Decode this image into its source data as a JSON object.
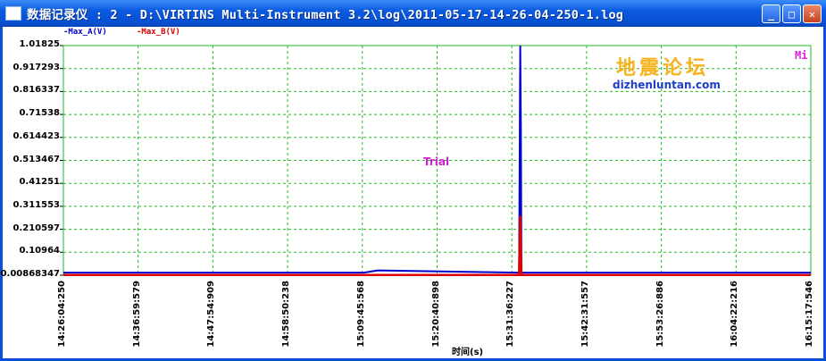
{
  "window": {
    "title": "数据记录仪 : 2 - D:\\VIRTINS Multi-Instrument 3.2\\log\\2011-05-17-14-26-04-250-1.log",
    "minimize": "_",
    "maximize": "□",
    "close": "✕"
  },
  "colors": {
    "series_a": "#0000cc",
    "series_b": "#dd0000",
    "grid": "#22bb22",
    "title_bar": "#0a5ae0"
  },
  "chart_data": {
    "type": "line",
    "xlabel": "时间(s)",
    "ylabel": "",
    "grid": true,
    "legend_position": "top-left",
    "ylim": [
      0.00868347,
      1.01825
    ],
    "y_ticks": [
      "1.01825",
      "0.917293",
      "0.816337",
      "0.71538",
      "0.614423",
      "0.513467",
      "0.41251",
      "0.311553",
      "0.210597",
      "0.10964",
      "0.00868347"
    ],
    "x_ticks": [
      "14:26:04:250",
      "14:36:59:579",
      "14:47:54:909",
      "14:58:50:238",
      "15:09:45:568",
      "15:20:40:898",
      "15:31:36:227",
      "15:42:31:557",
      "15:53:26:886",
      "16:04:22:216",
      "16:15:17:546"
    ],
    "series": [
      {
        "name": "Max_A(V)",
        "color": "#0000cc",
        "points": [
          [
            "14:26:04",
            0.02
          ],
          [
            "15:10:00",
            0.02
          ],
          [
            "15:12:00",
            0.03
          ],
          [
            "15:32:40",
            0.02
          ],
          [
            "15:32:50",
            1.018
          ],
          [
            "15:32:55",
            0.66
          ],
          [
            "15:33:00",
            0.02
          ],
          [
            "16:15:17",
            0.02
          ]
        ]
      },
      {
        "name": "Max_B(V)",
        "color": "#dd0000",
        "points": [
          [
            "14:26:04",
            0.01
          ],
          [
            "15:32:40",
            0.01
          ],
          [
            "15:32:50",
            0.27
          ],
          [
            "15:33:00",
            0.01
          ],
          [
            "16:15:17",
            0.01
          ]
        ]
      }
    ],
    "annotations": [
      "Trial",
      "Mi"
    ]
  },
  "watermark": {
    "cn": "地震论坛",
    "url": "dizhenluntan.com"
  }
}
